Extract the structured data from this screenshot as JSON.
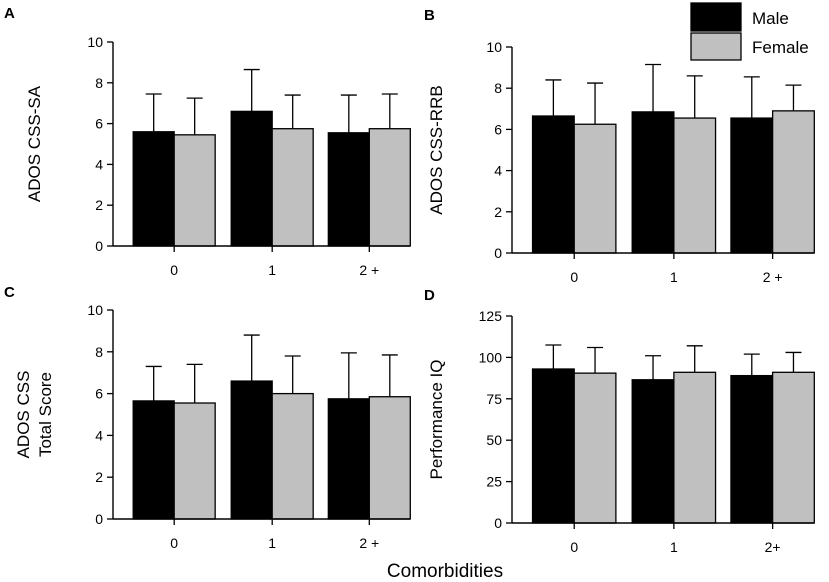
{
  "figure": {
    "xlabel": "Comorbidities",
    "legend": [
      {
        "label": "Male",
        "color": "#000000"
      },
      {
        "label": "Female",
        "color": "#c0c0c0"
      }
    ]
  },
  "chart_data": [
    {
      "type": "bar",
      "panel": "A",
      "categories": [
        "0",
        "1",
        "2 +"
      ],
      "ylabel": [
        "ADOS CSS-SA"
      ],
      "ylim": [
        0,
        10
      ],
      "yticks": [
        0,
        2,
        4,
        6,
        8,
        10
      ],
      "series": [
        {
          "name": "Male",
          "values": [
            5.6,
            6.6,
            5.55
          ],
          "err": [
            1.85,
            2.05,
            1.85
          ]
        },
        {
          "name": "Female",
          "values": [
            5.45,
            5.75,
            5.75
          ],
          "err": [
            1.8,
            1.65,
            1.7
          ]
        }
      ]
    },
    {
      "type": "bar",
      "panel": "B",
      "categories": [
        "0",
        "1",
        "2 +"
      ],
      "ylabel": [
        "ADOS CSS-RRB"
      ],
      "ylim": [
        0,
        10
      ],
      "yticks": [
        0,
        2,
        4,
        6,
        8,
        10
      ],
      "series": [
        {
          "name": "Male",
          "values": [
            6.65,
            6.85,
            6.55
          ],
          "err": [
            1.75,
            2.3,
            2.0
          ]
        },
        {
          "name": "Female",
          "values": [
            6.25,
            6.55,
            6.9
          ],
          "err": [
            2.0,
            2.05,
            1.25
          ]
        }
      ]
    },
    {
      "type": "bar",
      "panel": "C",
      "categories": [
        "0",
        "1",
        "2 +"
      ],
      "ylabel": [
        "ADOS CSS",
        "Total Score"
      ],
      "ylim": [
        0,
        10
      ],
      "yticks": [
        0,
        2,
        4,
        6,
        8,
        10
      ],
      "series": [
        {
          "name": "Male",
          "values": [
            5.65,
            6.6,
            5.75
          ],
          "err": [
            1.65,
            2.2,
            2.2
          ]
        },
        {
          "name": "Female",
          "values": [
            5.55,
            6.0,
            5.85
          ],
          "err": [
            1.85,
            1.8,
            2.0
          ]
        }
      ]
    },
    {
      "type": "bar",
      "panel": "D",
      "categories": [
        "0",
        "1",
        "2+"
      ],
      "ylabel": [
        "Performance IQ"
      ],
      "ylim": [
        0,
        125
      ],
      "yticks": [
        0,
        25,
        50,
        75,
        100,
        125
      ],
      "series": [
        {
          "name": "Male",
          "values": [
            93,
            86.5,
            89
          ],
          "err": [
            14.5,
            14.5,
            13
          ]
        },
        {
          "name": "Female",
          "values": [
            90.5,
            91,
            91
          ],
          "err": [
            15.5,
            16,
            12
          ]
        }
      ]
    }
  ]
}
